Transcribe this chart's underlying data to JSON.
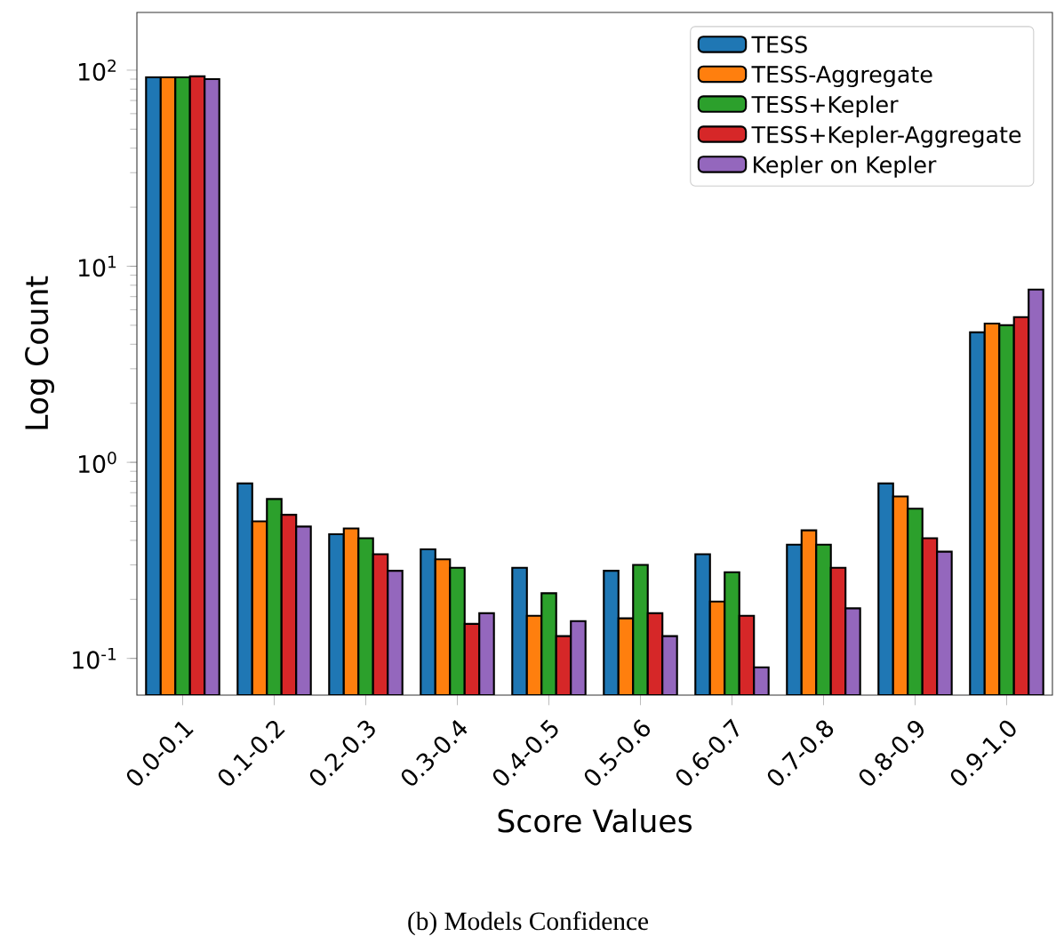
{
  "chart_data": {
    "type": "bar",
    "xlabel": "Score Values",
    "ylabel": "Log Count",
    "log": "y",
    "categories": [
      "0.0-0.1",
      "0.1-0.2",
      "0.2-0.3",
      "0.3-0.4",
      "0.4-0.5",
      "0.5-0.6",
      "0.6-0.7",
      "0.7-0.8",
      "0.8-0.9",
      "0.9-1.0"
    ],
    "series": [
      {
        "name": "TESS",
        "color": "#1f77b4",
        "values": [
          92,
          0.78,
          0.43,
          0.36,
          0.29,
          0.28,
          0.34,
          0.38,
          0.78,
          4.6
        ]
      },
      {
        "name": "TESS-Aggregate",
        "color": "#ff7f0e",
        "values": [
          92,
          0.5,
          0.46,
          0.32,
          0.165,
          0.16,
          0.195,
          0.45,
          0.67,
          5.1
        ]
      },
      {
        "name": "TESS+Kepler",
        "color": "#2ca02c",
        "values": [
          92,
          0.65,
          0.41,
          0.29,
          0.215,
          0.3,
          0.275,
          0.38,
          0.58,
          5.0
        ]
      },
      {
        "name": "TESS+Kepler-Aggregate",
        "color": "#d62728",
        "values": [
          93,
          0.54,
          0.34,
          0.15,
          0.13,
          0.17,
          0.165,
          0.29,
          0.41,
          5.5
        ]
      },
      {
        "name": "Kepler on Kepler",
        "color": "#9467bd",
        "values": [
          90,
          0.47,
          0.28,
          0.17,
          0.155,
          0.13,
          0.09,
          0.18,
          0.35,
          7.6
        ]
      }
    ],
    "ylim": [
      0.065,
      197
    ],
    "yticks": [
      {
        "value": 0.1,
        "label": "10$^{-1}$"
      },
      {
        "value": 1,
        "label": "10$^{0}$"
      },
      {
        "value": 10,
        "label": "10$^{1}$"
      },
      {
        "value": 100,
        "label": "10$^{2}$"
      }
    ],
    "legend": "top right",
    "grid": false,
    "annotations": [
      "(b) Models Confidence"
    ]
  }
}
